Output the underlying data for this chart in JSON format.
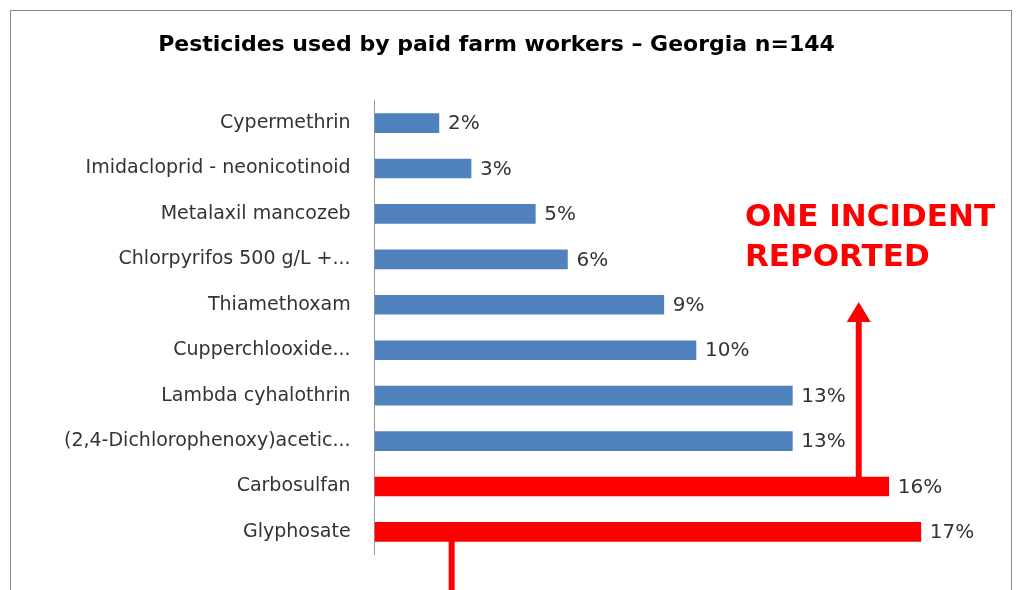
{
  "chart_data": {
    "type": "bar",
    "orientation": "horizontal",
    "title": "Pesticides used by paid farm workers – Georgia n=144",
    "categories": [
      "Cypermethrin",
      "Imidacloprid - neonicotinoid",
      "Metalaxil mancozeb",
      "Chlorpyrifos 500 g/L +...",
      "Thiamethoxam",
      "Cupperchlooxide...",
      "Lambda cyhalothrin",
      "(2,4-Dichlorophenoxy)acetic...",
      "Carbosulfan",
      "Glyphosate"
    ],
    "values": [
      2,
      3,
      5,
      6,
      9,
      10,
      13,
      13,
      16,
      17
    ],
    "colors": [
      "#4f81bd",
      "#4f81bd",
      "#4f81bd",
      "#4f81bd",
      "#4f81bd",
      "#4f81bd",
      "#4f81bd",
      "#4f81bd",
      "#ff0000",
      "#ff0000"
    ],
    "value_labels": [
      "2%",
      "3%",
      "5%",
      "6%",
      "9%",
      "10%",
      "13%",
      "13%",
      "16%",
      "17%"
    ],
    "annotations": [
      "ONE INCIDENT REPORTED"
    ],
    "grid": false,
    "legend": false
  }
}
